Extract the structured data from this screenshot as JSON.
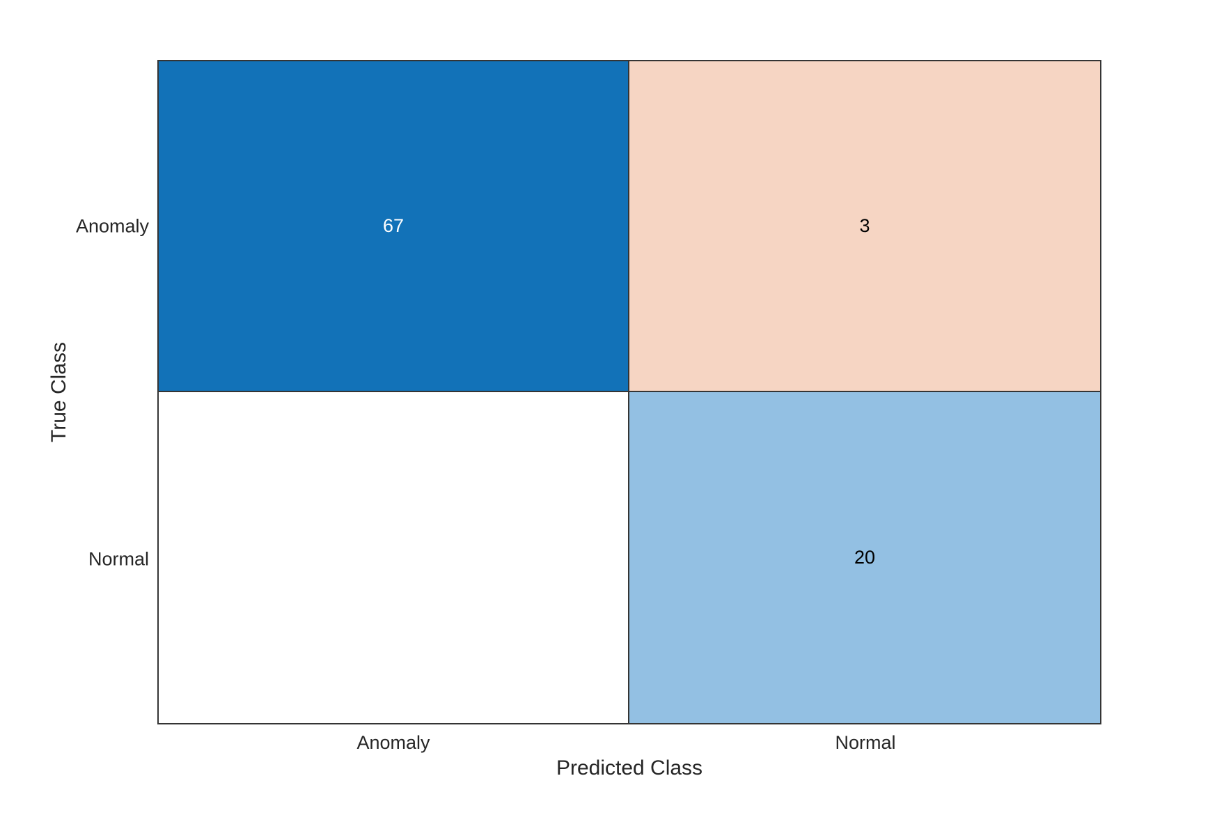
{
  "chart_data": {
    "type": "heatmap",
    "subtype": "confusion-matrix",
    "title": "",
    "xlabel": "Predicted Class",
    "ylabel": "True Class",
    "x_categories": [
      "Anomaly",
      "Normal"
    ],
    "y_categories": [
      "Anomaly",
      "Normal"
    ],
    "matrix": [
      [
        67,
        3
      ],
      [
        0,
        20
      ]
    ],
    "cells": [
      {
        "true_class": "Anomaly",
        "predicted_class": "Anomaly",
        "value": 67,
        "display": "67",
        "bg": "#1272b8",
        "text_color": "#ffffff"
      },
      {
        "true_class": "Anomaly",
        "predicted_class": "Normal",
        "value": 3,
        "display": "3",
        "bg": "#f6d5c3",
        "text_color": "#000000"
      },
      {
        "true_class": "Normal",
        "predicted_class": "Anomaly",
        "value": 0,
        "display": "",
        "bg": "#ffffff",
        "text_color": "#000000"
      },
      {
        "true_class": "Normal",
        "predicted_class": "Normal",
        "value": 20,
        "display": "20",
        "bg": "#93c0e3",
        "text_color": "#000000"
      }
    ],
    "colors": {
      "diagonal_max": "#1272b8",
      "diagonal_low": "#93c0e3",
      "offdiagonal_low": "#f6d5c3",
      "zero_cell": "#ffffff",
      "grid_border": "#343434",
      "label_text": "#262626",
      "background": "#ffffff"
    },
    "layout": {
      "grid": "on",
      "legend": "none",
      "colorbar": "none"
    }
  }
}
